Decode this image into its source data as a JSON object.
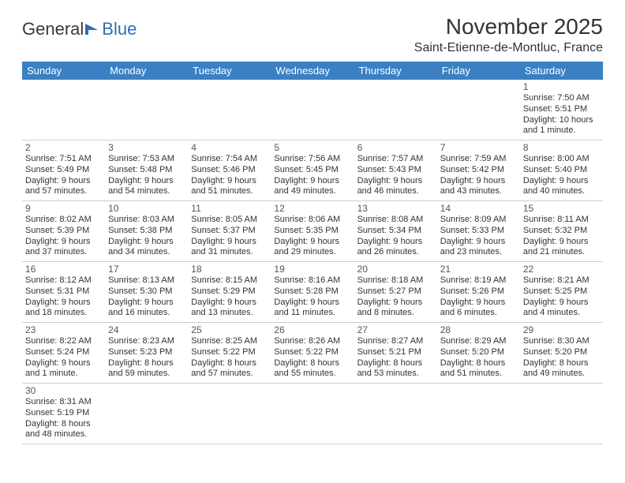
{
  "logo": {
    "text1": "General",
    "text2": "Blue"
  },
  "title": "November 2025",
  "location": "Saint-Etienne-de-Montluc, France",
  "colors": {
    "header_bg": "#3a80c3",
    "header_text": "#ffffff",
    "row_divider": "#3a80c3",
    "cell_divider": "#cfcfcf",
    "text": "#333333",
    "daynum": "#555555",
    "logo_blue": "#2f6fb0"
  },
  "day_headers": [
    "Sunday",
    "Monday",
    "Tuesday",
    "Wednesday",
    "Thursday",
    "Friday",
    "Saturday"
  ],
  "weeks": [
    [
      null,
      null,
      null,
      null,
      null,
      null,
      {
        "n": "1",
        "sr": "Sunrise: 7:50 AM",
        "ss": "Sunset: 5:51 PM",
        "dl": "Daylight: 10 hours and 1 minute."
      }
    ],
    [
      {
        "n": "2",
        "sr": "Sunrise: 7:51 AM",
        "ss": "Sunset: 5:49 PM",
        "dl": "Daylight: 9 hours and 57 minutes."
      },
      {
        "n": "3",
        "sr": "Sunrise: 7:53 AM",
        "ss": "Sunset: 5:48 PM",
        "dl": "Daylight: 9 hours and 54 minutes."
      },
      {
        "n": "4",
        "sr": "Sunrise: 7:54 AM",
        "ss": "Sunset: 5:46 PM",
        "dl": "Daylight: 9 hours and 51 minutes."
      },
      {
        "n": "5",
        "sr": "Sunrise: 7:56 AM",
        "ss": "Sunset: 5:45 PM",
        "dl": "Daylight: 9 hours and 49 minutes."
      },
      {
        "n": "6",
        "sr": "Sunrise: 7:57 AM",
        "ss": "Sunset: 5:43 PM",
        "dl": "Daylight: 9 hours and 46 minutes."
      },
      {
        "n": "7",
        "sr": "Sunrise: 7:59 AM",
        "ss": "Sunset: 5:42 PM",
        "dl": "Daylight: 9 hours and 43 minutes."
      },
      {
        "n": "8",
        "sr": "Sunrise: 8:00 AM",
        "ss": "Sunset: 5:40 PM",
        "dl": "Daylight: 9 hours and 40 minutes."
      }
    ],
    [
      {
        "n": "9",
        "sr": "Sunrise: 8:02 AM",
        "ss": "Sunset: 5:39 PM",
        "dl": "Daylight: 9 hours and 37 minutes."
      },
      {
        "n": "10",
        "sr": "Sunrise: 8:03 AM",
        "ss": "Sunset: 5:38 PM",
        "dl": "Daylight: 9 hours and 34 minutes."
      },
      {
        "n": "11",
        "sr": "Sunrise: 8:05 AM",
        "ss": "Sunset: 5:37 PM",
        "dl": "Daylight: 9 hours and 31 minutes."
      },
      {
        "n": "12",
        "sr": "Sunrise: 8:06 AM",
        "ss": "Sunset: 5:35 PM",
        "dl": "Daylight: 9 hours and 29 minutes."
      },
      {
        "n": "13",
        "sr": "Sunrise: 8:08 AM",
        "ss": "Sunset: 5:34 PM",
        "dl": "Daylight: 9 hours and 26 minutes."
      },
      {
        "n": "14",
        "sr": "Sunrise: 8:09 AM",
        "ss": "Sunset: 5:33 PM",
        "dl": "Daylight: 9 hours and 23 minutes."
      },
      {
        "n": "15",
        "sr": "Sunrise: 8:11 AM",
        "ss": "Sunset: 5:32 PM",
        "dl": "Daylight: 9 hours and 21 minutes."
      }
    ],
    [
      {
        "n": "16",
        "sr": "Sunrise: 8:12 AM",
        "ss": "Sunset: 5:31 PM",
        "dl": "Daylight: 9 hours and 18 minutes."
      },
      {
        "n": "17",
        "sr": "Sunrise: 8:13 AM",
        "ss": "Sunset: 5:30 PM",
        "dl": "Daylight: 9 hours and 16 minutes."
      },
      {
        "n": "18",
        "sr": "Sunrise: 8:15 AM",
        "ss": "Sunset: 5:29 PM",
        "dl": "Daylight: 9 hours and 13 minutes."
      },
      {
        "n": "19",
        "sr": "Sunrise: 8:16 AM",
        "ss": "Sunset: 5:28 PM",
        "dl": "Daylight: 9 hours and 11 minutes."
      },
      {
        "n": "20",
        "sr": "Sunrise: 8:18 AM",
        "ss": "Sunset: 5:27 PM",
        "dl": "Daylight: 9 hours and 8 minutes."
      },
      {
        "n": "21",
        "sr": "Sunrise: 8:19 AM",
        "ss": "Sunset: 5:26 PM",
        "dl": "Daylight: 9 hours and 6 minutes."
      },
      {
        "n": "22",
        "sr": "Sunrise: 8:21 AM",
        "ss": "Sunset: 5:25 PM",
        "dl": "Daylight: 9 hours and 4 minutes."
      }
    ],
    [
      {
        "n": "23",
        "sr": "Sunrise: 8:22 AM",
        "ss": "Sunset: 5:24 PM",
        "dl": "Daylight: 9 hours and 1 minute."
      },
      {
        "n": "24",
        "sr": "Sunrise: 8:23 AM",
        "ss": "Sunset: 5:23 PM",
        "dl": "Daylight: 8 hours and 59 minutes."
      },
      {
        "n": "25",
        "sr": "Sunrise: 8:25 AM",
        "ss": "Sunset: 5:22 PM",
        "dl": "Daylight: 8 hours and 57 minutes."
      },
      {
        "n": "26",
        "sr": "Sunrise: 8:26 AM",
        "ss": "Sunset: 5:22 PM",
        "dl": "Daylight: 8 hours and 55 minutes."
      },
      {
        "n": "27",
        "sr": "Sunrise: 8:27 AM",
        "ss": "Sunset: 5:21 PM",
        "dl": "Daylight: 8 hours and 53 minutes."
      },
      {
        "n": "28",
        "sr": "Sunrise: 8:29 AM",
        "ss": "Sunset: 5:20 PM",
        "dl": "Daylight: 8 hours and 51 minutes."
      },
      {
        "n": "29",
        "sr": "Sunrise: 8:30 AM",
        "ss": "Sunset: 5:20 PM",
        "dl": "Daylight: 8 hours and 49 minutes."
      }
    ],
    [
      {
        "n": "30",
        "sr": "Sunrise: 8:31 AM",
        "ss": "Sunset: 5:19 PM",
        "dl": "Daylight: 8 hours and 48 minutes."
      },
      null,
      null,
      null,
      null,
      null,
      null
    ]
  ]
}
